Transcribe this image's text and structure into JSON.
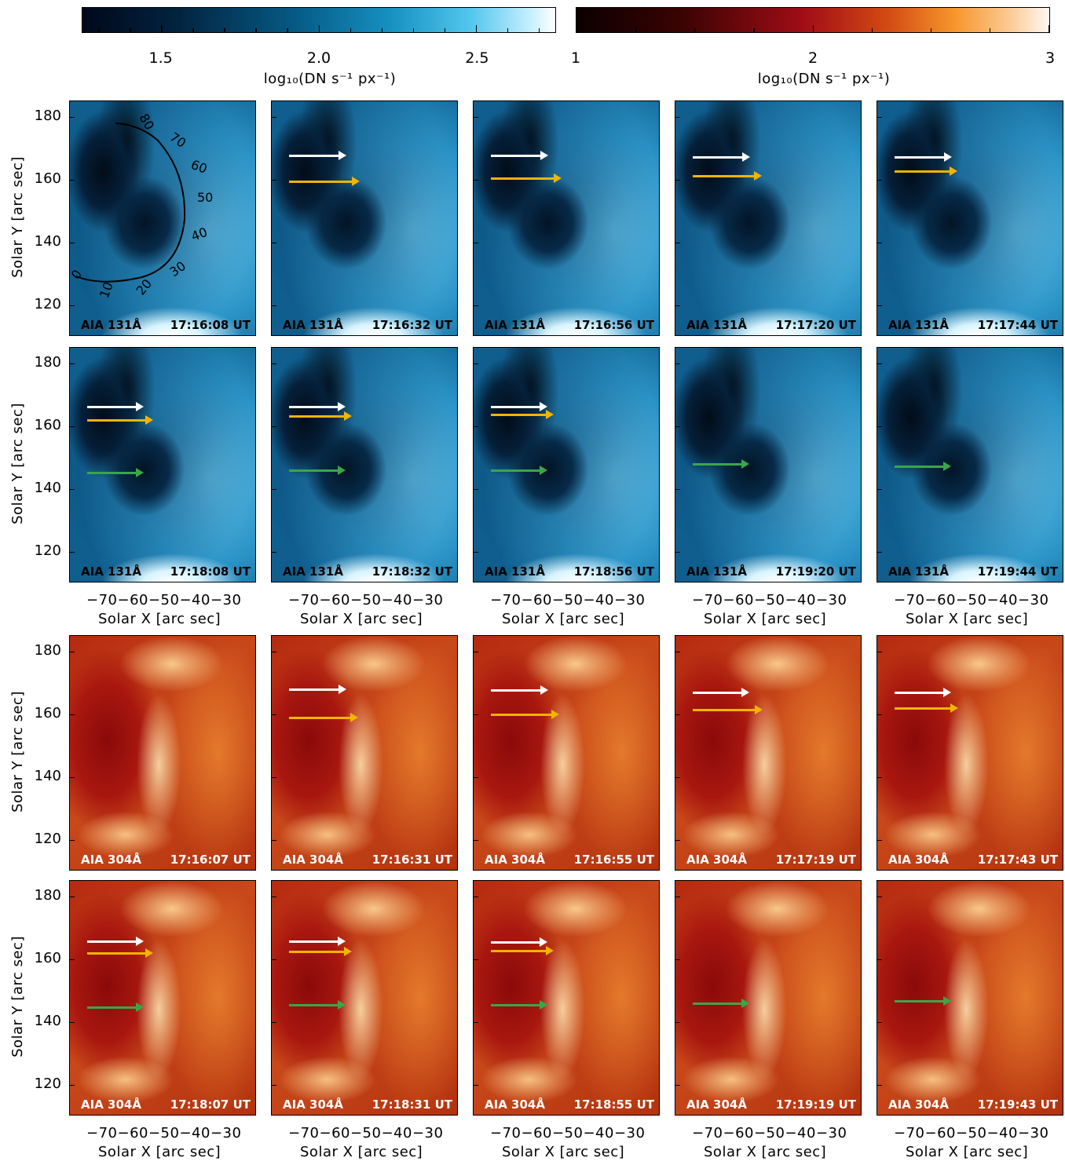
{
  "colorbar_131": {
    "ticks": [
      "1.5",
      "2.0",
      "2.5"
    ],
    "unit": "log₁₀(DN s⁻¹ px⁻¹)",
    "range": [
      1.25,
      2.75
    ],
    "colormap": "AIA 131 (blue)"
  },
  "colorbar_304": {
    "ticks": [
      "1",
      "2",
      "3"
    ],
    "unit": "log₁₀(DN s⁻¹ px⁻¹)",
    "range": [
      1,
      3
    ],
    "colormap": "AIA 304 (red)"
  },
  "y_axis": {
    "title": "Solar Y [arc sec]",
    "ticks": [
      "180",
      "160",
      "140",
      "120"
    ]
  },
  "x_axis": {
    "title": "Solar X [arc sec]",
    "ticks": "−70−60−50−40−30"
  },
  "slit_labels": [
    "0",
    "10",
    "20",
    "30",
    "40",
    "50",
    "60",
    "70",
    "80"
  ],
  "rows": [
    {
      "channel": "AIA 131Å",
      "panels": [
        {
          "time": "17:16:08 UT",
          "arrows": []
        },
        {
          "time": "17:16:32 UT",
          "arrows": [
            "white",
            "yellow"
          ]
        },
        {
          "time": "17:16:56 UT",
          "arrows": [
            "white",
            "yellow"
          ]
        },
        {
          "time": "17:17:20 UT",
          "arrows": [
            "white",
            "yellow"
          ]
        },
        {
          "time": "17:17:44 UT",
          "arrows": [
            "white",
            "yellow"
          ]
        }
      ]
    },
    {
      "channel": "AIA 131Å",
      "panels": [
        {
          "time": "17:18:08 UT",
          "arrows": [
            "white",
            "yellow",
            "green"
          ]
        },
        {
          "time": "17:18:32 UT",
          "arrows": [
            "white",
            "yellow",
            "green"
          ]
        },
        {
          "time": "17:18:56 UT",
          "arrows": [
            "white",
            "yellow",
            "green"
          ]
        },
        {
          "time": "17:19:20 UT",
          "arrows": [
            "green"
          ]
        },
        {
          "time": "17:19:44 UT",
          "arrows": [
            "green"
          ]
        }
      ]
    },
    {
      "channel": "AIA 304Å",
      "panels": [
        {
          "time": "17:16:07 UT",
          "arrows": []
        },
        {
          "time": "17:16:31 UT",
          "arrows": [
            "white",
            "yellow"
          ]
        },
        {
          "time": "17:16:55 UT",
          "arrows": [
            "white",
            "yellow"
          ]
        },
        {
          "time": "17:17:19 UT",
          "arrows": [
            "white",
            "yellow"
          ]
        },
        {
          "time": "17:17:43 UT",
          "arrows": [
            "white",
            "yellow"
          ]
        }
      ]
    },
    {
      "channel": "AIA 304Å",
      "panels": [
        {
          "time": "17:18:07 UT",
          "arrows": [
            "white",
            "yellow",
            "green"
          ]
        },
        {
          "time": "17:18:31 UT",
          "arrows": [
            "white",
            "yellow",
            "green"
          ]
        },
        {
          "time": "17:18:55 UT",
          "arrows": [
            "white",
            "yellow",
            "green"
          ]
        },
        {
          "time": "17:19:19 UT",
          "arrows": [
            "green"
          ]
        },
        {
          "time": "17:19:43 UT",
          "arrows": [
            "green"
          ]
        }
      ]
    }
  ]
}
